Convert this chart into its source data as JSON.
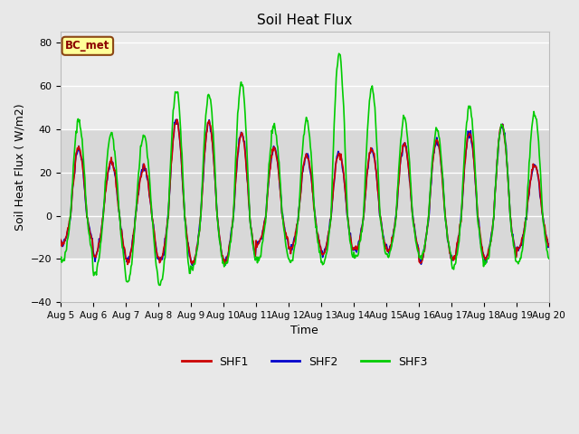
{
  "title": "Soil Heat Flux",
  "xlabel": "Time",
  "ylabel": "Soil Heat Flux ( W/m2)",
  "ylim": [
    -40,
    85
  ],
  "yticks": [
    -40,
    -20,
    0,
    20,
    40,
    60,
    80
  ],
  "xlim_days": [
    5.0,
    20.0
  ],
  "xtick_days": [
    5,
    6,
    7,
    8,
    9,
    10,
    11,
    12,
    13,
    14,
    15,
    16,
    17,
    18,
    19,
    20
  ],
  "xtick_labels": [
    "Aug 5",
    "Aug 6",
    "Aug 7",
    "Aug 8",
    "Aug 9",
    "Aug 10",
    "Aug 11",
    "Aug 12",
    "Aug 13",
    "Aug 14",
    "Aug 15",
    "Aug 16",
    "Aug 17",
    "Aug 18",
    "Aug 19",
    "Aug 20"
  ],
  "shf1_color": "#cc0000",
  "shf2_color": "#0000cc",
  "shf3_color": "#00cc00",
  "line_width": 1.2,
  "background_color": "#e8e8e8",
  "inner_background": "#ebebeb",
  "legend_label": "BC_met",
  "legend_box_color": "#ffff99",
  "legend_box_edge": "#8b4513",
  "band_low": -20,
  "band_high": 40,
  "band_color": "#d8d8d8",
  "day_peaks_shf12": [
    31,
    25,
    22,
    44,
    43,
    38,
    31,
    28,
    29,
    31,
    33,
    35,
    38,
    42,
    23
  ],
  "day_peaks_shf3": [
    44,
    38,
    37,
    58,
    56,
    61,
    41,
    44,
    75,
    59,
    45,
    40,
    50,
    42,
    47
  ],
  "day_troughs_shf12": [
    -13,
    -19,
    -21,
    -21,
    -22,
    -21,
    -13,
    -16,
    -18,
    -16,
    -16,
    -21,
    -20,
    -20,
    -15
  ],
  "day_troughs_shf3": [
    -21,
    -27,
    -31,
    -32,
    -24,
    -23,
    -21,
    -21,
    -22,
    -19,
    -19,
    -20,
    -24,
    -22,
    -22
  ]
}
